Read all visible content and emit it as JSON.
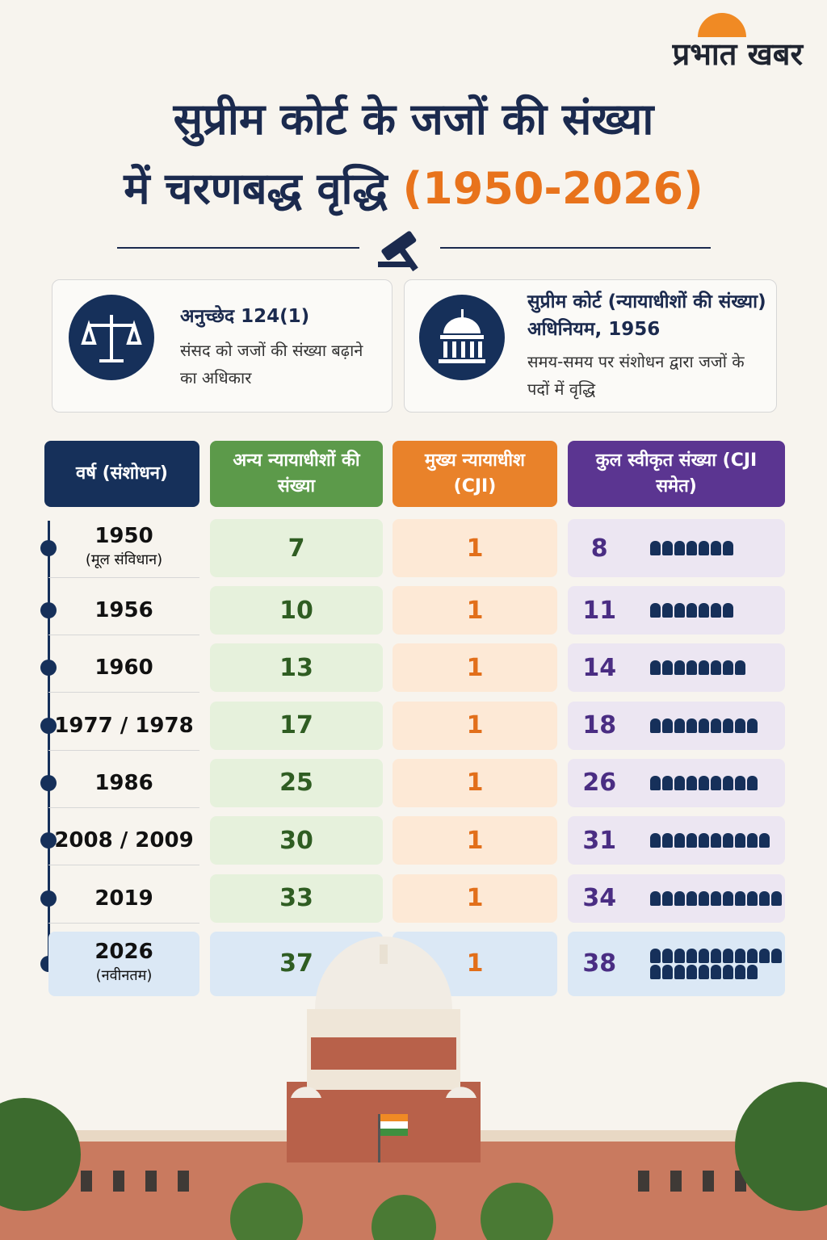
{
  "brand": "प्रभात खबर",
  "title": {
    "line1": "सुप्रीम कोर्ट के जजों की संख्या",
    "line2": "में चरणबद्ध वृद्धि",
    "highlight": "(1950-2026)"
  },
  "cards": [
    {
      "title": "अनुच्छेद 124(1)",
      "text": "संसद को जजों की संख्या बढ़ाने का अधिकार"
    },
    {
      "title": "सुप्रीम कोर्ट (न्यायाधीशों की संख्या) अधिनियम, 1956",
      "text": "समय-समय पर संशोधन द्वारा जजों के पदों में वृद्धि"
    }
  ],
  "table": {
    "headers": [
      "वर्ष (संशोधन)",
      "अन्य न्यायाधीशों की संख्या",
      "मुख्य न्यायाधीश (CJI)",
      "कुल स्वीकृत संख्या (CJI समेत)"
    ],
    "rows": [
      {
        "year": "1950",
        "note": "(मूल संविधान)",
        "other": 7,
        "cji": 1,
        "total": 8
      },
      {
        "year": "1956",
        "other": 10,
        "cji": 1,
        "total": 11
      },
      {
        "year": "1960",
        "other": 13,
        "cji": 1,
        "total": 14
      },
      {
        "year": "1977 / 1978",
        "other": 17,
        "cji": 1,
        "total": 18
      },
      {
        "year": "1986",
        "other": 25,
        "cji": 1,
        "total": 26
      },
      {
        "year": "2008 / 2009",
        "other": 30,
        "cji": 1,
        "total": 31
      },
      {
        "year": "2019",
        "other": 33,
        "cji": 1,
        "total": 34
      },
      {
        "year": "2026",
        "note": "(नवीनतम)",
        "other": 37,
        "cji": 1,
        "total": 38
      }
    ]
  }
}
